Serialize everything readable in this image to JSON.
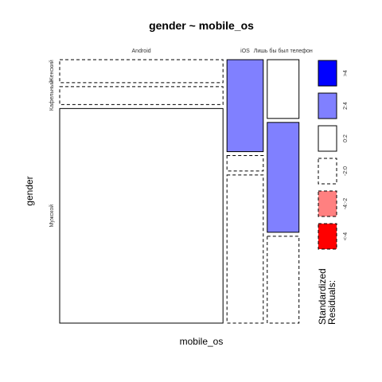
{
  "chart_data": {
    "type": "mosaic",
    "title": "gender ~ mobile_os",
    "xlabel": "mobile_os",
    "ylabel": "gender",
    "columns": [
      "Android",
      "iOS",
      "Лишь бы был телефон"
    ],
    "rows": [
      "Женский",
      "Кафельный",
      "Мужской"
    ],
    "column_proportions": [
      0.72,
      0.16,
      0.14
    ],
    "cell_proportions": [
      [
        0.09,
        0.07,
        0.84
      ],
      [
        0.36,
        0.06,
        0.58
      ],
      [
        0.23,
        0.43,
        0.34
      ]
    ],
    "residual_class": [
      [
        "-2:0",
        "-2:0",
        "0:2"
      ],
      [
        "2:4",
        "-2:0",
        "-2:0"
      ],
      [
        "0:2",
        "2:4",
        "-2:0"
      ]
    ],
    "legend": {
      "title_line1": "Standardized",
      "title_line2": "Residuals:",
      "entries": [
        {
          "label": ">4",
          "fill": "#0000ff",
          "dashed": false
        },
        {
          "label": "2:4",
          "fill": "#8080ff",
          "dashed": false
        },
        {
          "label": "0:2",
          "fill": "#ffffff",
          "dashed": false
        },
        {
          "label": "-2:0",
          "fill": "#ffffff",
          "dashed": true
        },
        {
          "label": "-4:-2",
          "fill": "#ff8080",
          "dashed": true
        },
        {
          "label": "<-4",
          "fill": "#ff0000",
          "dashed": true
        }
      ]
    }
  }
}
